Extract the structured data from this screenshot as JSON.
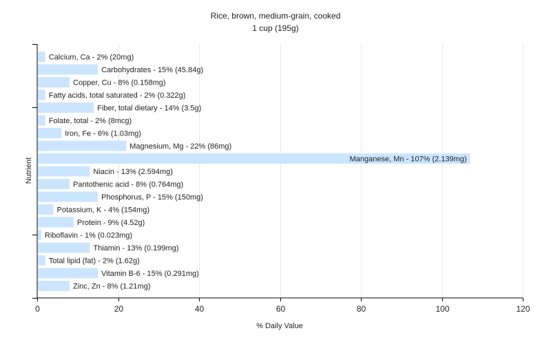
{
  "chart_data": {
    "type": "bar",
    "orientation": "horizontal",
    "title": "Rice, brown, medium-grain, cooked",
    "subtitle": "1 cup (195g)",
    "xlabel": "% Daily Value",
    "ylabel": "Nutrient",
    "xlim": [
      0,
      120
    ],
    "xticks": [
      0,
      20,
      40,
      60,
      80,
      100,
      120
    ],
    "grid": true,
    "legend": "none",
    "bar_color": "#cce5ff",
    "categories": [
      "Calcium, Ca - 2% (20mg)",
      "Carbohydrates - 15% (45.84g)",
      "Copper, Cu - 8% (0.158mg)",
      "Fatty acids, total saturated - 2% (0.322g)",
      "Fiber, total dietary - 14% (3.5g)",
      "Folate, total - 2% (8mcg)",
      "Iron, Fe - 6% (1.03mg)",
      "Magnesium, Mg - 22% (86mg)",
      "Manganese, Mn - 107% (2.139mg)",
      "Niacin - 13% (2.594mg)",
      "Pantothenic acid - 8% (0.764mg)",
      "Phosphorus, P - 15% (150mg)",
      "Potassium, K - 4% (154mg)",
      "Protein - 9% (4.52g)",
      "Riboflavin - 1% (0.023mg)",
      "Thiamin - 13% (0.199mg)",
      "Total lipid (fat) - 2% (1.62g)",
      "Vitamin B-6 - 15% (0.291mg)",
      "Zinc, Zn - 8% (1.21mg)"
    ],
    "values": [
      2,
      15,
      8,
      2,
      14,
      2,
      6,
      22,
      107,
      13,
      8,
      15,
      4,
      9,
      1,
      13,
      2,
      15,
      8
    ]
  }
}
